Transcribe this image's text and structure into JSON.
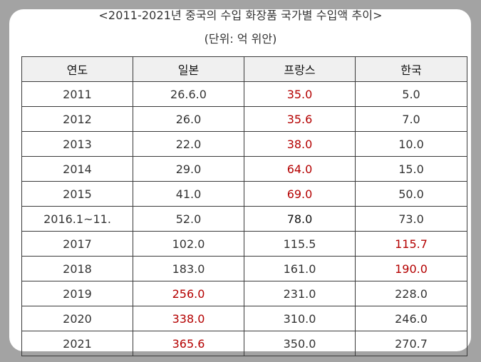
{
  "title": "<2011-2021년 중국의 수입 화장품 국가별 수입액 추이>",
  "unit": "(단위: 억 위안)",
  "headers": [
    "연도",
    "일본",
    "프랑스",
    "한국"
  ],
  "rows": [
    [
      "2011",
      "26.6.0",
      "35.0",
      "5.0"
    ],
    [
      "2012",
      "26.0",
      "35.6",
      "7.0"
    ],
    [
      "2013",
      "22.0",
      "38.0",
      "10.0"
    ],
    [
      "2014",
      "29.0",
      "64.0",
      "15.0"
    ],
    [
      "2015",
      "41.0",
      "69.0",
      "50.0"
    ],
    [
      "2016.1~11.",
      "52.0",
      "78.0",
      "73.0"
    ],
    [
      "2017",
      "102.0",
      "115.5",
      "115.7"
    ],
    [
      "2018",
      "183.0",
      "161.0",
      "190.0"
    ],
    [
      "2019",
      "256.0",
      "231.0",
      "228.0"
    ],
    [
      "2020",
      "338.0",
      "310.0",
      "246.0"
    ],
    [
      "2021",
      "365.6",
      "350.0",
      "270.7"
    ]
  ],
  "colors": {
    "highlight": "#b40000",
    "text": "#333333",
    "header_bg": "#f0f0f0",
    "backdrop": "#a3a3a3"
  }
}
